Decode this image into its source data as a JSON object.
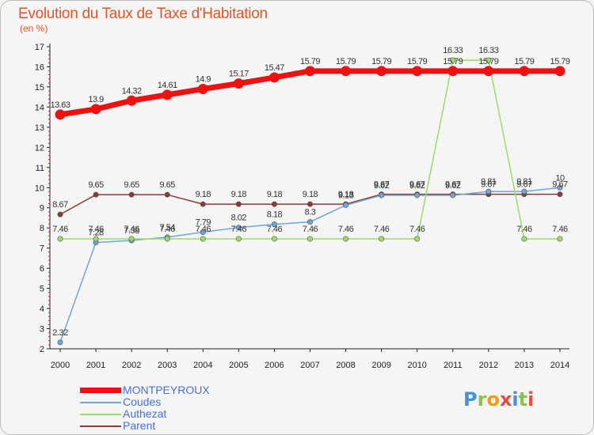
{
  "header": {
    "title": "Evolution du Taux de Taxe d'Habitation",
    "unit": "(en %)"
  },
  "logo": {
    "text": "Proxiti",
    "colors": [
      "#4a90d9",
      "#8bc34a",
      "#f39c12",
      "#e74c3c",
      "#4a90d9",
      "#8bc34a",
      "#e74c3c"
    ]
  },
  "chart_data": {
    "type": "line",
    "x": [
      2000,
      2001,
      2002,
      2003,
      2004,
      2005,
      2006,
      2007,
      2008,
      2009,
      2010,
      2011,
      2012,
      2013,
      2014
    ],
    "ylim": [
      2,
      17
    ],
    "yticks": [
      2,
      3,
      4,
      5,
      6,
      7,
      8,
      9,
      10,
      11,
      12,
      13,
      14,
      15,
      16,
      17
    ],
    "grid": false,
    "legend_position": "bottom-left",
    "series": [
      {
        "name": "MONTPEYROUX",
        "color": "#ee1111",
        "width": 7,
        "values": [
          13.63,
          13.9,
          14.32,
          14.61,
          14.9,
          15.17,
          15.47,
          15.79,
          15.79,
          15.79,
          15.79,
          15.79,
          15.79,
          15.79,
          15.79
        ]
      },
      {
        "name": "Coudes",
        "color": "#6fa6d6",
        "width": 1.5,
        "values": [
          2.32,
          7.28,
          7.38,
          7.54,
          7.79,
          8.02,
          8.18,
          8.3,
          9.13,
          9.62,
          9.62,
          9.62,
          9.81,
          9.81,
          10
        ]
      },
      {
        "name": "Authezat",
        "color": "#99dd66",
        "width": 1.5,
        "values": [
          7.46,
          7.46,
          7.46,
          7.46,
          7.46,
          7.46,
          7.46,
          7.46,
          7.46,
          7.46,
          7.46,
          16.33,
          16.33,
          7.46,
          7.46
        ]
      },
      {
        "name": "Parent",
        "color": "#8b3a3a",
        "width": 1.5,
        "values": [
          8.67,
          9.65,
          9.65,
          9.65,
          9.18,
          9.18,
          9.18,
          9.18,
          9.18,
          9.67,
          9.67,
          9.67,
          9.67,
          9.67,
          9.67
        ]
      }
    ],
    "data_labels": {
      "MONTPEYROUX": [
        "13.63",
        "13.9",
        "14.32",
        "14.61",
        "14.9",
        "15.17",
        "15.47",
        "15.79",
        "15.79",
        "15.79",
        "15.79",
        "15.79",
        "15.79",
        "15.79",
        "15.79"
      ],
      "Coudes": [
        "2.32",
        "7.28",
        "7.38",
        "7.54",
        "7.79",
        "8.02",
        "8.18",
        "8.3",
        "9.13",
        "9.62",
        "9.62",
        "9.62",
        "9.81",
        "9.81",
        "10"
      ],
      "Authezat": [
        "7.46",
        "7.46",
        "7.46",
        "7.46",
        "7.46",
        "7.46",
        "7.46",
        "7.46",
        "7.46",
        "7.46",
        "7.46",
        "16.33",
        "16.33",
        "7.46",
        "7.46"
      ],
      "Parent": [
        "8.67",
        "9.65",
        "9.65",
        "9.65",
        "9.18",
        "9.18",
        "9.18",
        "9.18",
        "9.18",
        "9.67",
        "9.67",
        "9.67",
        "9.67",
        "9.67",
        "9.67"
      ]
    }
  }
}
